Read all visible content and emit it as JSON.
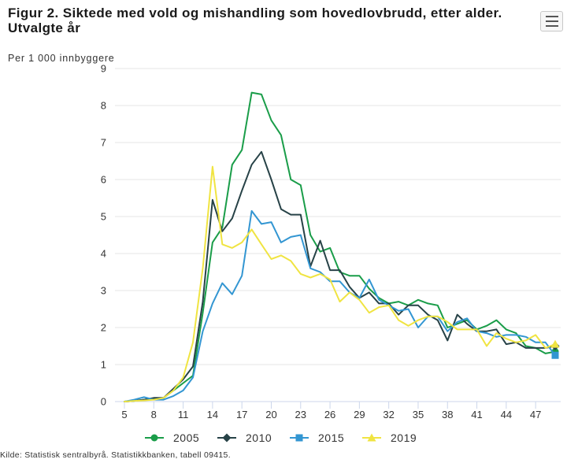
{
  "chart_data": {
    "type": "line",
    "title": "Figur 2. Siktede med vold og mishandling som hovedlovbrudd, etter alder. Utvalgte år",
    "ylabel": "Per 1 000 innbyggere",
    "x": [
      5,
      6,
      7,
      8,
      9,
      10,
      11,
      12,
      13,
      14,
      15,
      16,
      17,
      18,
      19,
      20,
      21,
      22,
      23,
      24,
      25,
      26,
      27,
      28,
      29,
      30,
      31,
      32,
      33,
      34,
      35,
      36,
      37,
      38,
      39,
      40,
      41,
      42,
      43,
      44,
      45,
      46,
      47,
      48,
      49
    ],
    "xlim": [
      5,
      49
    ],
    "ylim": [
      0,
      9
    ],
    "x_ticks": [
      "5",
      "8",
      "11",
      "14",
      "17",
      "20",
      "23",
      "26",
      "29",
      "32",
      "35",
      "38",
      "41",
      "44",
      "47"
    ],
    "y_ticks": [
      "0",
      "1",
      "2",
      "3",
      "4",
      "5",
      "6",
      "7",
      "8",
      "9"
    ],
    "grid": true,
    "legend_position": "bottom",
    "series": [
      {
        "name": "2005",
        "color": "#1a9d49",
        "marker": "circle",
        "values": [
          0,
          0.02,
          0.05,
          0.08,
          0.1,
          0.3,
          0.5,
          0.7,
          2.4,
          4.3,
          4.7,
          6.4,
          6.8,
          8.35,
          8.3,
          7.6,
          7.2,
          6.0,
          5.85,
          4.5,
          4.05,
          4.15,
          3.5,
          3.4,
          3.4,
          3.05,
          2.8,
          2.65,
          2.7,
          2.6,
          2.75,
          2.65,
          2.6,
          2.0,
          2.1,
          2.2,
          1.95,
          2.05,
          2.2,
          1.95,
          1.85,
          1.5,
          1.45,
          1.3,
          1.35
        ]
      },
      {
        "name": "2010",
        "color": "#274247",
        "marker": "diamond",
        "values": [
          0,
          0.02,
          0.05,
          0.1,
          0.1,
          0.35,
          0.6,
          0.95,
          2.7,
          5.45,
          4.6,
          4.95,
          5.7,
          6.4,
          6.75,
          6.0,
          5.2,
          5.05,
          5.05,
          3.65,
          4.35,
          3.55,
          3.55,
          3.1,
          2.8,
          2.95,
          2.65,
          2.65,
          2.35,
          2.6,
          2.6,
          2.35,
          2.2,
          1.65,
          2.35,
          2.1,
          1.9,
          1.9,
          1.95,
          1.55,
          1.6,
          1.45,
          1.45,
          1.45,
          1.5
        ]
      },
      {
        "name": "2015",
        "color": "#3396d2",
        "marker": "square",
        "values": [
          0,
          0.05,
          0.12,
          0.05,
          0.05,
          0.15,
          0.3,
          0.65,
          1.9,
          2.65,
          3.2,
          2.9,
          3.4,
          5.15,
          4.8,
          4.85,
          4.3,
          4.45,
          4.5,
          3.6,
          3.5,
          3.25,
          3.25,
          2.95,
          2.8,
          3.3,
          2.75,
          2.6,
          2.45,
          2.5,
          2.0,
          2.3,
          2.3,
          1.9,
          2.15,
          2.25,
          1.9,
          1.85,
          1.75,
          1.8,
          1.8,
          1.75,
          1.6,
          1.6,
          1.25
        ]
      },
      {
        "name": "2019",
        "color": "#f0e442",
        "marker": "triangle",
        "values": [
          0,
          0.02,
          0.03,
          0.05,
          0.1,
          0.3,
          0.65,
          1.6,
          3.6,
          6.35,
          4.25,
          4.15,
          4.3,
          4.65,
          4.25,
          3.85,
          3.95,
          3.8,
          3.45,
          3.35,
          3.45,
          3.3,
          2.7,
          2.95,
          2.75,
          2.4,
          2.55,
          2.6,
          2.2,
          2.05,
          2.2,
          2.3,
          2.3,
          2.15,
          1.95,
          1.95,
          1.95,
          1.5,
          1.85,
          1.7,
          1.6,
          1.65,
          1.8,
          1.45,
          1.55
        ]
      }
    ],
    "source": "Kilde: Statistisk sentralbyrå. Statistikkbanken, tabell 09415."
  },
  "menu": {
    "icon": "hamburger-menu-icon"
  }
}
